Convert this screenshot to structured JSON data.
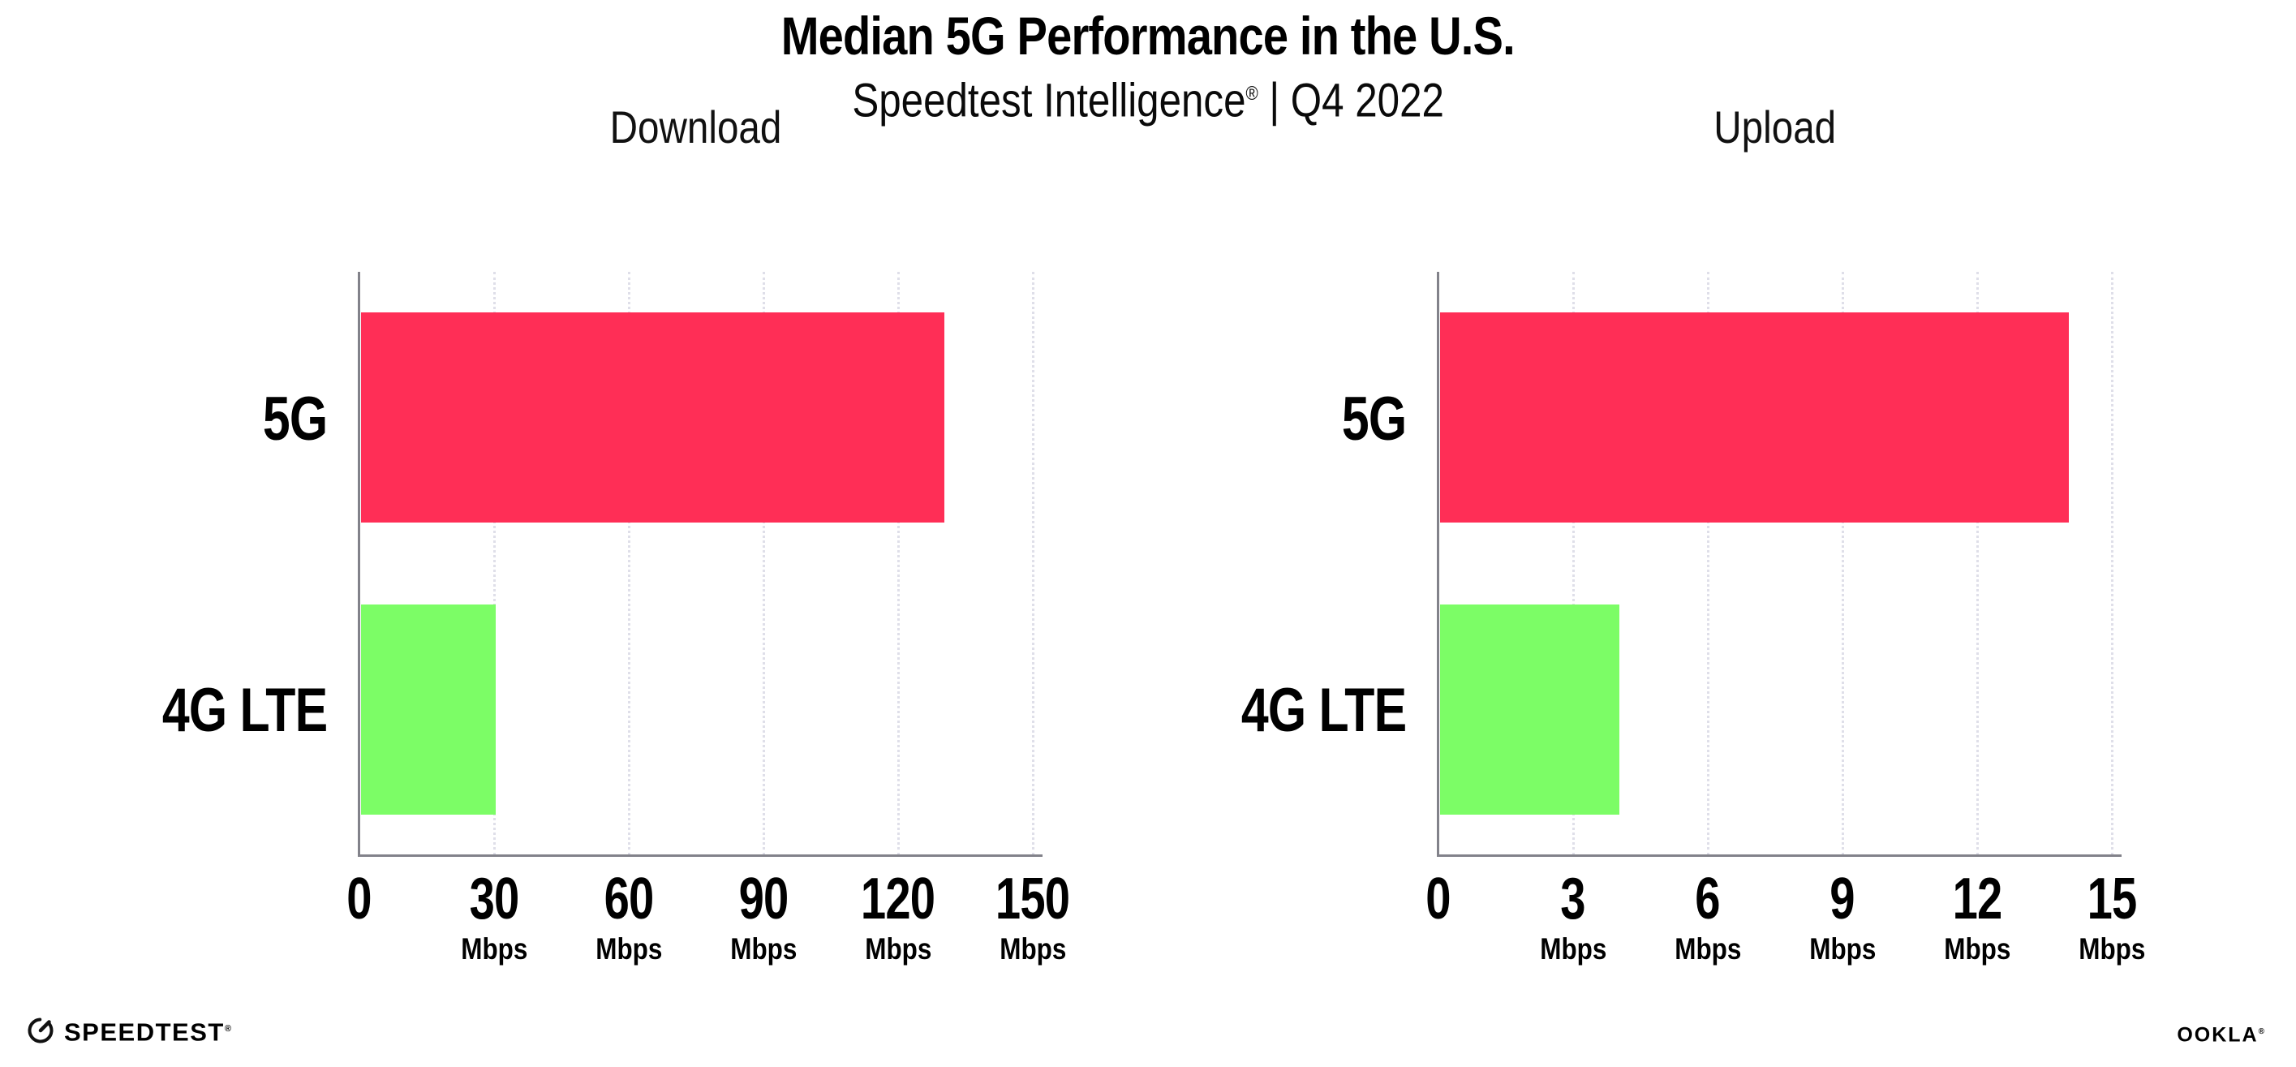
{
  "header": {
    "title": "Median 5G Performance in the U.S.",
    "subtitle": {
      "brand": "Speedtest Intelligence",
      "registered": "®",
      "separator": "|",
      "period": "Q4 2022"
    }
  },
  "chart_data": [
    {
      "type": "bar",
      "orientation": "horizontal",
      "title": "Download",
      "categories": [
        "5G",
        "4G LTE"
      ],
      "values": [
        130,
        30
      ],
      "unit": "Mbps",
      "xlim": [
        0,
        150
      ],
      "xticks": [
        0,
        30,
        60,
        90,
        120,
        150
      ],
      "bar_colors": [
        "#FF2E56",
        "#7CFD66"
      ],
      "grid": "vertical dotted",
      "legend": "none"
    },
    {
      "type": "bar",
      "orientation": "horizontal",
      "title": "Upload",
      "categories": [
        "5G",
        "4G LTE"
      ],
      "values": [
        14,
        4
      ],
      "unit": "Mbps",
      "xlim": [
        0,
        15
      ],
      "xticks": [
        0,
        3,
        6,
        9,
        12,
        15
      ],
      "bar_colors": [
        "#FF2E56",
        "#7CFD66"
      ],
      "grid": "vertical dotted",
      "legend": "none"
    }
  ],
  "footer": {
    "speedtest": {
      "label": "SPEEDTEST",
      "registered": "®"
    },
    "ookla": {
      "label": "OOKLA",
      "registered": "®"
    }
  },
  "colors": {
    "bar_5g": "#FF2E56",
    "bar_4g_lte": "#7CFD66",
    "axis": "#82828A",
    "gridline": "#DFDFE9",
    "background": "#FFFFFF",
    "text": "#000000"
  }
}
